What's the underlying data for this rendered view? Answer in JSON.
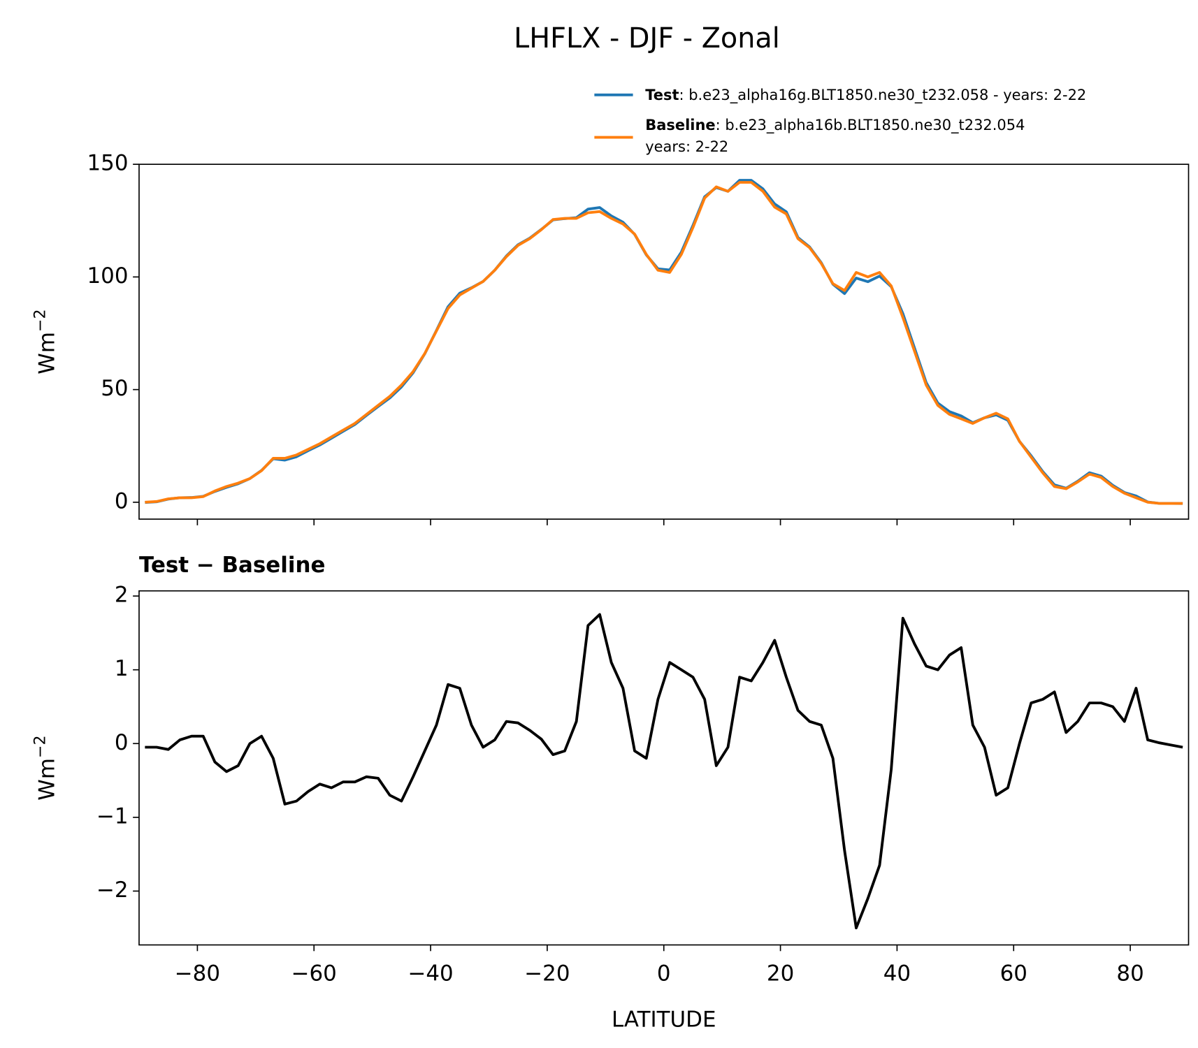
{
  "chart_data": [
    {
      "type": "line",
      "title": "LHFLX - DJF - Zonal",
      "ylabel": [
        "Wm",
        "−2"
      ],
      "x": [
        -89,
        -87,
        -85,
        -83,
        -81,
        -79,
        -77,
        -75,
        -73,
        -71,
        -69,
        -67,
        -65,
        -63,
        -61,
        -59,
        -57,
        -55,
        -53,
        -51,
        -49,
        -47,
        -45,
        -43,
        -41,
        -39,
        -37,
        -35,
        -33,
        -31,
        -29,
        -27,
        -25,
        -23,
        -21,
        -19,
        -17,
        -15,
        -13,
        -11,
        -9,
        -7,
        -5,
        -3,
        -1,
        1,
        3,
        5,
        7,
        9,
        11,
        13,
        15,
        17,
        19,
        21,
        23,
        25,
        27,
        29,
        31,
        33,
        35,
        37,
        39,
        41,
        43,
        45,
        47,
        49,
        51,
        53,
        55,
        57,
        59,
        61,
        63,
        65,
        67,
        69,
        71,
        73,
        75,
        77,
        79,
        81,
        83,
        85,
        87,
        89
      ],
      "series": [
        {
          "name": "Test",
          "label": [
            ": b.e23_alpha16g.BLT1850.ne30_t232.058 - years: 2-22"
          ],
          "color": "#1f77b4",
          "values": [
            -0.1,
            0.2,
            1.4,
            2.0,
            2.1,
            2.6,
            4.8,
            6.6,
            8.2,
            10.5,
            14.1,
            19.3,
            18.7,
            20.2,
            22.9,
            25.4,
            28.4,
            31.5,
            34.5,
            38.6,
            42.5,
            46.3,
            51.2,
            57.5,
            65.9,
            76.2,
            86.8,
            92.8,
            95.2,
            98.0,
            103.0,
            109.3,
            114.3,
            117.2,
            121.1,
            125.3,
            125.9,
            126.3,
            130.1,
            130.8,
            127.1,
            124.3,
            118.9,
            109.8,
            103.6,
            103.1,
            111.0,
            122.9,
            135.6,
            139.7,
            138.0,
            142.9,
            142.9,
            139.1,
            132.4,
            128.9,
            117.5,
            113.3,
            106.3,
            96.8,
            92.6,
            99.5,
            97.9,
            100.4,
            95.7,
            83.7,
            68.4,
            53.1,
            44.0,
            40.2,
            38.3,
            35.3,
            37.5,
            38.8,
            36.4,
            27.0,
            20.6,
            13.6,
            7.7,
            6.2,
            9.3,
            13.1,
            11.6,
            7.5,
            4.3,
            2.8,
            0.1,
            -0.5,
            -0.5,
            -0.6
          ]
        },
        {
          "name": "Baseline",
          "label": [
            ": b.e23_alpha16b.BLT1850.ne30_t232.054",
            "years: 2-22"
          ],
          "color": "#ff7f0e",
          "values": [
            0,
            0.3,
            1.5,
            2,
            2,
            2.5,
            5,
            7,
            8.5,
            10.5,
            14,
            19.5,
            19.5,
            21,
            23.5,
            26,
            29,
            32,
            35,
            39,
            43,
            47,
            52,
            58,
            66,
            76,
            86,
            92,
            95,
            98,
            103,
            109,
            114,
            117,
            121,
            125.5,
            126,
            126,
            128.5,
            129,
            126,
            123.5,
            119,
            110,
            103,
            102,
            110,
            122,
            135,
            140,
            138,
            142,
            142,
            138,
            131,
            128,
            117,
            113,
            106,
            97,
            94,
            102,
            100,
            102,
            96,
            82,
            67,
            52,
            43,
            39,
            37,
            35,
            37.5,
            39.5,
            37,
            27,
            20,
            13,
            7,
            6,
            9,
            12.5,
            11,
            7,
            4,
            2,
            0,
            -0.5,
            -0.5,
            -0.5
          ]
        }
      ],
      "xlim": [
        -90,
        90
      ],
      "xticks": [
        -80,
        -60,
        -40,
        -20,
        0,
        20,
        40,
        60,
        80
      ],
      "show_xtick_labels": false,
      "ylim": [
        -7.5,
        150
      ],
      "yticks": [
        0,
        50,
        100,
        150
      ]
    },
    {
      "type": "line",
      "title": "Test − Baseline",
      "ylabel": [
        "Wm",
        "−2"
      ],
      "xlabel": "LATITUDE",
      "x": [
        -89,
        -87,
        -85,
        -83,
        -81,
        -79,
        -77,
        -75,
        -73,
        -71,
        -69,
        -67,
        -65,
        -63,
        -61,
        -59,
        -57,
        -55,
        -53,
        -51,
        -49,
        -47,
        -45,
        -43,
        -41,
        -39,
        -37,
        -35,
        -33,
        -31,
        -29,
        -27,
        -25,
        -23,
        -21,
        -19,
        -17,
        -15,
        -13,
        -11,
        -9,
        -7,
        -5,
        -3,
        -1,
        1,
        3,
        5,
        7,
        9,
        11,
        13,
        15,
        17,
        19,
        21,
        23,
        25,
        27,
        29,
        31,
        33,
        35,
        37,
        39,
        41,
        43,
        45,
        47,
        49,
        51,
        53,
        55,
        57,
        59,
        61,
        63,
        65,
        67,
        69,
        71,
        73,
        75,
        77,
        79,
        81,
        83,
        85,
        87,
        89
      ],
      "series": [
        {
          "color": "#000000",
          "values": [
            -0.05,
            -0.05,
            -0.08,
            0.05,
            0.1,
            0.1,
            -0.25,
            -0.38,
            -0.3,
            0,
            0.1,
            -0.2,
            -0.82,
            -0.78,
            -0.65,
            -0.55,
            -0.6,
            -0.52,
            -0.52,
            -0.45,
            -0.47,
            -0.7,
            -0.78,
            -0.45,
            -0.1,
            0.25,
            0.8,
            0.75,
            0.25,
            -0.05,
            0.05,
            0.3,
            0.28,
            0.18,
            0.06,
            -0.15,
            -0.1,
            0.3,
            1.6,
            1.75,
            1.1,
            0.75,
            -0.1,
            -0.2,
            0.6,
            1.1,
            1.0,
            0.9,
            0.6,
            -0.3,
            -0.05,
            0.9,
            0.85,
            1.1,
            1.4,
            0.9,
            0.45,
            0.3,
            0.25,
            -0.2,
            -1.45,
            -2.5,
            -2.1,
            -1.65,
            -0.35,
            1.7,
            1.35,
            1.05,
            1.0,
            1.2,
            1.3,
            0.25,
            -0.05,
            -0.7,
            -0.6,
            0,
            0.55,
            0.6,
            0.7,
            0.15,
            0.3,
            0.55,
            0.55,
            0.5,
            0.3,
            0.75,
            0.05,
            0.01,
            -0.02,
            -0.05
          ]
        }
      ],
      "xlim": [
        -90,
        90
      ],
      "xticks": [
        {
          "value": -80,
          "label": "−80"
        },
        {
          "value": -60,
          "label": "−60"
        },
        {
          "value": -40,
          "label": "−40"
        },
        {
          "value": -20,
          "label": "−20"
        },
        0,
        20,
        40,
        60,
        80
      ],
      "show_xtick_labels": true,
      "ylim": [
        -2.73,
        2.07
      ],
      "yticks": [
        {
          "value": -2,
          "label": "−2"
        },
        {
          "value": -1,
          "label": "−1"
        },
        0,
        1,
        2
      ]
    }
  ]
}
